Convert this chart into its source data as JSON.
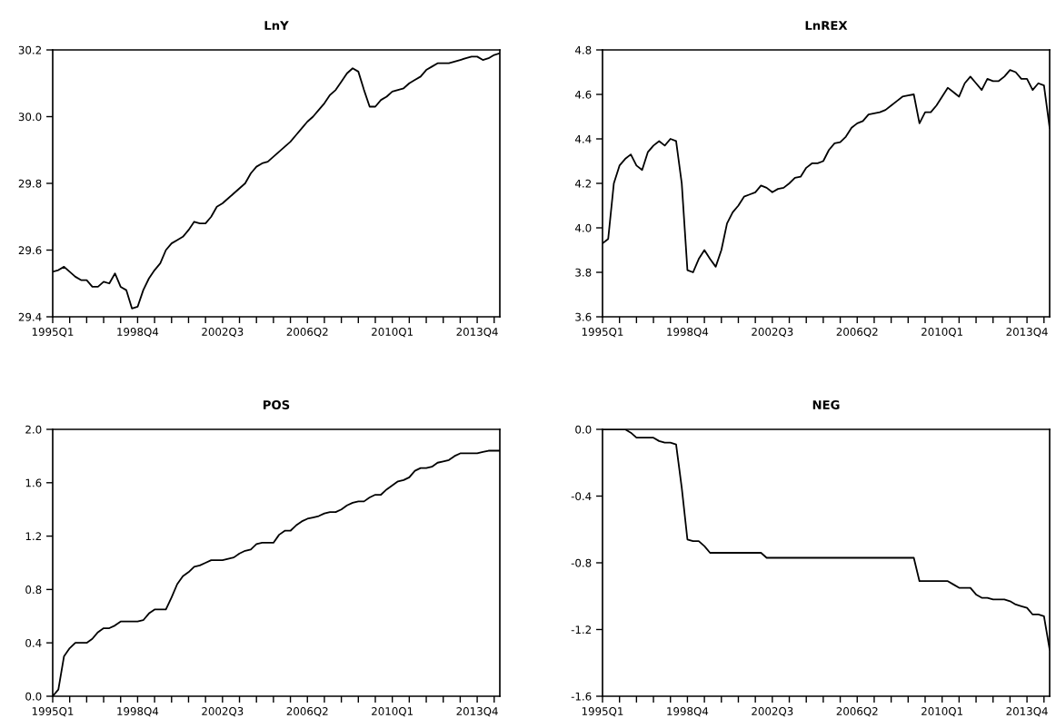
{
  "chart_data": [
    {
      "type": "line",
      "title": "LnY",
      "categories": [
        "1995Q1",
        null,
        null,
        null,
        null,
        null,
        null,
        null,
        null,
        null,
        null,
        null,
        null,
        null,
        null,
        "1998Q4",
        null,
        null,
        null,
        null,
        null,
        null,
        null,
        null,
        null,
        null,
        null,
        null,
        null,
        null,
        "2002Q3",
        null,
        null,
        null,
        null,
        null,
        null,
        null,
        null,
        null,
        null,
        null,
        null,
        null,
        null,
        "2006Q2",
        null,
        null,
        null,
        null,
        null,
        null,
        null,
        null,
        null,
        null,
        null,
        null,
        null,
        null,
        "2010Q1",
        null,
        null,
        null,
        null,
        null,
        null,
        null,
        null,
        null,
        null,
        null,
        null,
        null,
        null,
        "2013Q4",
        null,
        null,
        null,
        null
      ],
      "series": [
        {
          "color": "#000000",
          "values": [
            29.535,
            29.54,
            29.55,
            29.535,
            29.52,
            29.51,
            29.51,
            29.49,
            29.49,
            29.505,
            29.5,
            29.53,
            29.49,
            29.48,
            29.425,
            29.43,
            29.48,
            29.515,
            29.54,
            29.56,
            29.6,
            29.62,
            29.63,
            29.64,
            29.66,
            29.685,
            29.68,
            29.68,
            29.7,
            29.73,
            29.74,
            29.755,
            29.77,
            29.785,
            29.8,
            29.83,
            29.85,
            29.86,
            29.865,
            29.88,
            29.895,
            29.91,
            29.925,
            29.945,
            29.965,
            29.985,
            30.0,
            30.02,
            30.04,
            30.065,
            30.08,
            30.105,
            30.13,
            30.145,
            30.135,
            30.08,
            30.03,
            30.03,
            30.05,
            30.06,
            30.075,
            30.08,
            30.085,
            30.1,
            30.11,
            30.12,
            30.14,
            30.15,
            30.16,
            30.16,
            30.16,
            30.165,
            30.17,
            30.175,
            30.18,
            30.18,
            30.17,
            30.175,
            30.185,
            30.19
          ]
        }
      ],
      "ylim": [
        29.4,
        30.2
      ],
      "yticks": [
        {
          "value": 29.4,
          "label": "29.4"
        },
        {
          "value": 29.6,
          "label": "29.6"
        },
        {
          "value": 29.8,
          "label": "29.8"
        },
        {
          "value": 30.0,
          "label": "30.0"
        },
        {
          "value": 30.2,
          "label": "30.2"
        }
      ]
    },
    {
      "type": "line",
      "title": "LnREX",
      "categories": [
        "1995Q1",
        null,
        null,
        null,
        null,
        null,
        null,
        null,
        null,
        null,
        null,
        null,
        null,
        null,
        null,
        "1998Q4",
        null,
        null,
        null,
        null,
        null,
        null,
        null,
        null,
        null,
        null,
        null,
        null,
        null,
        null,
        "2002Q3",
        null,
        null,
        null,
        null,
        null,
        null,
        null,
        null,
        null,
        null,
        null,
        null,
        null,
        null,
        "2006Q2",
        null,
        null,
        null,
        null,
        null,
        null,
        null,
        null,
        null,
        null,
        null,
        null,
        null,
        null,
        "2010Q1",
        null,
        null,
        null,
        null,
        null,
        null,
        null,
        null,
        null,
        null,
        null,
        null,
        null,
        null,
        "2013Q4",
        null,
        null,
        null,
        null
      ],
      "series": [
        {
          "color": "#000000",
          "values": [
            3.93,
            3.95,
            4.2,
            4.28,
            4.31,
            4.33,
            4.28,
            4.26,
            4.34,
            4.37,
            4.39,
            4.37,
            4.4,
            4.39,
            4.2,
            3.81,
            3.8,
            3.86,
            3.9,
            3.86,
            3.825,
            3.9,
            4.02,
            4.07,
            4.1,
            4.14,
            4.15,
            4.16,
            4.19,
            4.18,
            4.16,
            4.175,
            4.18,
            4.2,
            4.225,
            4.23,
            4.27,
            4.29,
            4.29,
            4.3,
            4.35,
            4.38,
            4.385,
            4.41,
            4.45,
            4.47,
            4.48,
            4.51,
            4.515,
            4.52,
            4.53,
            4.55,
            4.57,
            4.59,
            4.595,
            4.6,
            4.47,
            4.52,
            4.52,
            4.55,
            4.59,
            4.63,
            4.61,
            4.59,
            4.65,
            4.68,
            4.65,
            4.62,
            4.67,
            4.66,
            4.66,
            4.68,
            4.71,
            4.7,
            4.67,
            4.67,
            4.62,
            4.65,
            4.64,
            4.45
          ]
        }
      ],
      "ylim": [
        3.6,
        4.8
      ],
      "yticks": [
        {
          "value": 3.6,
          "label": "3.6"
        },
        {
          "value": 3.8,
          "label": "3.8"
        },
        {
          "value": 4.0,
          "label": "4.0"
        },
        {
          "value": 4.2,
          "label": "4.2"
        },
        {
          "value": 4.4,
          "label": "4.4"
        },
        {
          "value": 4.6,
          "label": "4.6"
        },
        {
          "value": 4.8,
          "label": "4.8"
        }
      ]
    },
    {
      "type": "line",
      "title": "POS",
      "categories": [
        "1995Q1",
        null,
        null,
        null,
        null,
        null,
        null,
        null,
        null,
        null,
        null,
        null,
        null,
        null,
        null,
        "1998Q4",
        null,
        null,
        null,
        null,
        null,
        null,
        null,
        null,
        null,
        null,
        null,
        null,
        null,
        null,
        "2002Q3",
        null,
        null,
        null,
        null,
        null,
        null,
        null,
        null,
        null,
        null,
        null,
        null,
        null,
        null,
        "2006Q2",
        null,
        null,
        null,
        null,
        null,
        null,
        null,
        null,
        null,
        null,
        null,
        null,
        null,
        null,
        "2010Q1",
        null,
        null,
        null,
        null,
        null,
        null,
        null,
        null,
        null,
        null,
        null,
        null,
        null,
        null,
        "2013Q4",
        null,
        null,
        null,
        null
      ],
      "series": [
        {
          "color": "#000000",
          "values": [
            0.0,
            0.05,
            0.3,
            0.36,
            0.4,
            0.4,
            0.4,
            0.43,
            0.48,
            0.51,
            0.51,
            0.53,
            0.56,
            0.56,
            0.56,
            0.56,
            0.57,
            0.62,
            0.65,
            0.65,
            0.65,
            0.74,
            0.84,
            0.9,
            0.93,
            0.97,
            0.98,
            1.0,
            1.02,
            1.02,
            1.02,
            1.03,
            1.04,
            1.07,
            1.09,
            1.1,
            1.14,
            1.15,
            1.15,
            1.15,
            1.21,
            1.24,
            1.24,
            1.28,
            1.31,
            1.33,
            1.34,
            1.35,
            1.37,
            1.38,
            1.38,
            1.4,
            1.43,
            1.45,
            1.46,
            1.46,
            1.49,
            1.51,
            1.51,
            1.55,
            1.58,
            1.61,
            1.62,
            1.64,
            1.69,
            1.71,
            1.71,
            1.72,
            1.75,
            1.76,
            1.77,
            1.8,
            1.82,
            1.82,
            1.82,
            1.82,
            1.83,
            1.84,
            1.84,
            1.84
          ]
        }
      ],
      "ylim": [
        0.0,
        2.0
      ],
      "yticks": [
        {
          "value": 0.0,
          "label": "0.0"
        },
        {
          "value": 0.4,
          "label": "0.4"
        },
        {
          "value": 0.8,
          "label": "0.8"
        },
        {
          "value": 1.2,
          "label": "1.2"
        },
        {
          "value": 1.6,
          "label": "1.6"
        },
        {
          "value": 2.0,
          "label": "2.0"
        }
      ]
    },
    {
      "type": "line",
      "title": "NEG",
      "categories": [
        "1995Q1",
        null,
        null,
        null,
        null,
        null,
        null,
        null,
        null,
        null,
        null,
        null,
        null,
        null,
        null,
        "1998Q4",
        null,
        null,
        null,
        null,
        null,
        null,
        null,
        null,
        null,
        null,
        null,
        null,
        null,
        null,
        "2002Q3",
        null,
        null,
        null,
        null,
        null,
        null,
        null,
        null,
        null,
        null,
        null,
        null,
        null,
        null,
        "2006Q2",
        null,
        null,
        null,
        null,
        null,
        null,
        null,
        null,
        null,
        null,
        null,
        null,
        null,
        null,
        "2010Q1",
        null,
        null,
        null,
        null,
        null,
        null,
        null,
        null,
        null,
        null,
        null,
        null,
        null,
        null,
        "2013Q4",
        null,
        null,
        null,
        null
      ],
      "series": [
        {
          "color": "#000000",
          "values": [
            0.0,
            0.0,
            0.0,
            0.0,
            0.0,
            -0.02,
            -0.05,
            -0.05,
            -0.05,
            -0.05,
            -0.07,
            -0.08,
            -0.08,
            -0.09,
            -0.35,
            -0.66,
            -0.67,
            -0.67,
            -0.7,
            -0.74,
            -0.74,
            -0.74,
            -0.74,
            -0.74,
            -0.74,
            -0.74,
            -0.74,
            -0.74,
            -0.74,
            -0.77,
            -0.77,
            -0.77,
            -0.77,
            -0.77,
            -0.77,
            -0.77,
            -0.77,
            -0.77,
            -0.77,
            -0.77,
            -0.77,
            -0.77,
            -0.77,
            -0.77,
            -0.77,
            -0.77,
            -0.77,
            -0.77,
            -0.77,
            -0.77,
            -0.77,
            -0.77,
            -0.77,
            -0.77,
            -0.77,
            -0.77,
            -0.91,
            -0.91,
            -0.91,
            -0.91,
            -0.91,
            -0.91,
            -0.93,
            -0.95,
            -0.95,
            -0.95,
            -0.99,
            -1.01,
            -1.01,
            -1.02,
            -1.02,
            -1.02,
            -1.03,
            -1.05,
            -1.06,
            -1.07,
            -1.11,
            -1.11,
            -1.12,
            -1.32
          ]
        }
      ],
      "ylim": [
        -1.6,
        0.0
      ],
      "yticks": [
        {
          "value": -1.6,
          "label": "-1.6"
        },
        {
          "value": -1.2,
          "label": "-1.2"
        },
        {
          "value": -0.8,
          "label": "-0.8"
        },
        {
          "value": -0.4,
          "label": "-0.4"
        },
        {
          "value": 0.0,
          "label": "0.0"
        }
      ]
    }
  ]
}
